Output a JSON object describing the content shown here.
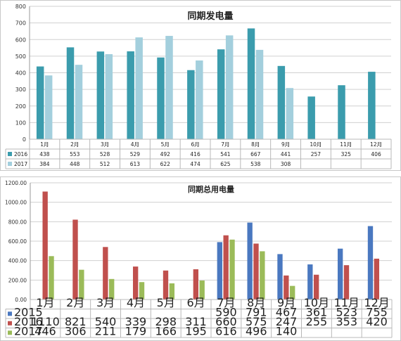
{
  "chart_data": [
    {
      "type": "bar",
      "title": "同期发电量",
      "categories": [
        "1月",
        "2月",
        "3月",
        "4月",
        "5月",
        "6月",
        "7月",
        "8月",
        "9月",
        "10月",
        "11月",
        "12月"
      ],
      "ylim": [
        0,
        800
      ],
      "yticks": [
        "0",
        "100",
        "200",
        "300",
        "400",
        "500",
        "600",
        "700",
        "800"
      ],
      "grid": true,
      "data_table": true,
      "series": [
        {
          "name": "2016",
          "color": "#3b9cad",
          "values": [
            438,
            553,
            528,
            529,
            492,
            416,
            541,
            667,
            441,
            257,
            325,
            406
          ]
        },
        {
          "name": "2017",
          "color": "#a3cfdd",
          "values": [
            384,
            448,
            512,
            613,
            622,
            474,
            625,
            538,
            308,
            null,
            null,
            null
          ]
        }
      ]
    },
    {
      "type": "bar",
      "title": "同期总用电量",
      "categories": [
        "1月",
        "2月",
        "3月",
        "4月",
        "5月",
        "6月",
        "7月",
        "8月",
        "9月",
        "10月",
        "11月",
        "12月"
      ],
      "ylim": [
        0,
        1200
      ],
      "yticks": [
        "0.00",
        "200.00",
        "400.00",
        "600.00",
        "800.00",
        "1000.00",
        "1200.00"
      ],
      "grid": true,
      "data_table": true,
      "series": [
        {
          "name": "2015",
          "color": "#4a78c0",
          "values": [
            null,
            null,
            null,
            null,
            null,
            null,
            590,
            791,
            467,
            361,
            523,
            755
          ]
        },
        {
          "name": "2016",
          "color": "#c0504d",
          "values": [
            1110,
            821,
            540,
            339,
            298,
            311,
            660,
            575,
            247,
            255,
            353,
            420
          ]
        },
        {
          "name": "2017",
          "color": "#9bbb59",
          "values": [
            446,
            306,
            211,
            179,
            166,
            195,
            616,
            496,
            140,
            null,
            null,
            null
          ]
        }
      ]
    }
  ]
}
